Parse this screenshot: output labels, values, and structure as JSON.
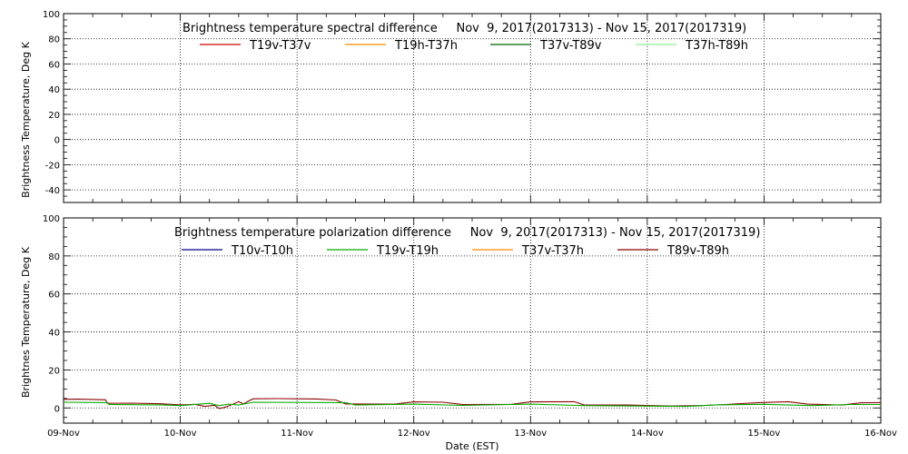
{
  "chart_data": [
    {
      "type": "line",
      "title": "Brightness temperature spectral difference     Nov  9, 2017(2017313) - Nov 15, 2017(2017319)",
      "ylabel": "Brightness Temperature, Deg K",
      "ylim": [
        -50,
        100
      ],
      "yticks": [
        -40,
        -20,
        0,
        20,
        40,
        60,
        80,
        100
      ],
      "xlim": [
        "2017-11-09",
        "2017-11-16"
      ],
      "grid": true,
      "legend_position": "top",
      "series": [
        {
          "name": "T19v-T37v",
          "color": "#cc0000",
          "points": []
        },
        {
          "name": "T19h-T37h",
          "color": "#ff8c00",
          "points": []
        },
        {
          "name": "T37v-T89v",
          "color": "#006400",
          "points": []
        },
        {
          "name": "T37h-T89h",
          "color": "#90ee90",
          "points": []
        }
      ]
    },
    {
      "type": "line",
      "title": "Brightness temperature polarization difference     Nov  9, 2017(2017313) - Nov 15, 2017(2017319)",
      "ylabel": "Brightnes Temperature, Deg K",
      "xlabel": "Date (EST)",
      "ylim": [
        -8,
        100
      ],
      "yticks": [
        0,
        20,
        40,
        60,
        80,
        100
      ],
      "xlim": [
        "2017-11-09",
        "2017-11-16"
      ],
      "grid": true,
      "legend_position": "top",
      "series": [
        {
          "name": "T10v-T10h",
          "color": "#00008b",
          "points": []
        },
        {
          "name": "T19v-T19h",
          "color": "#00aa00",
          "points": []
        },
        {
          "name": "T37v-T37h",
          "color": "#ff8c00",
          "points": []
        },
        {
          "name": "T89v-T89h",
          "color": "#8b0000",
          "points": [
            [
              "2017-11-09 00:00",
              4.5
            ],
            [
              "2017-11-09 03:00",
              4.6
            ],
            [
              "2017-11-09 07:00",
              4.4
            ],
            [
              "2017-11-09 08:40",
              4.3
            ],
            [
              "2017-11-09 09:00",
              2.4
            ],
            [
              "2017-11-09 14:00",
              2.5
            ],
            [
              "2017-11-09 20:00",
              2.2
            ],
            [
              "2017-11-10 00:00",
              1.6
            ],
            [
              "2017-11-10 03:00",
              1.9
            ],
            [
              "2017-11-10 05:00",
              0.8
            ],
            [
              "2017-11-10 07:00",
              1.4
            ],
            [
              "2017-11-10 08:00",
              -0.3
            ],
            [
              "2017-11-10 09:00",
              0.2
            ],
            [
              "2017-11-10 10:00",
              1.1
            ],
            [
              "2017-11-10 11:00",
              2.2
            ],
            [
              "2017-11-10 12:00",
              3.3
            ],
            [
              "2017-11-10 13:00",
              2.1
            ],
            [
              "2017-11-10 14:00",
              3.6
            ],
            [
              "2017-11-10 15:00",
              4.8
            ],
            [
              "2017-11-10 20:00",
              4.9
            ],
            [
              "2017-11-11 04:00",
              4.7
            ],
            [
              "2017-11-11 08:00",
              4.2
            ],
            [
              "2017-11-11 10:00",
              2.1
            ],
            [
              "2017-11-11 20:00",
              2.0
            ],
            [
              "2017-11-12 00:00",
              3.2
            ],
            [
              "2017-11-12 06:00",
              3.0
            ],
            [
              "2017-11-12 10:00",
              1.8
            ],
            [
              "2017-11-12 20:00",
              1.9
            ],
            [
              "2017-11-13 00:00",
              3.2
            ],
            [
              "2017-11-13 09:00",
              3.3
            ],
            [
              "2017-11-13 11:00",
              1.6
            ],
            [
              "2017-11-13 20:00",
              1.5
            ],
            [
              "2017-11-14 05:00",
              1.0
            ],
            [
              "2017-11-14 12:00",
              1.3
            ],
            [
              "2017-11-14 16:00",
              1.8
            ],
            [
              "2017-11-14 23:00",
              2.8
            ],
            [
              "2017-11-15 05:00",
              3.3
            ],
            [
              "2017-11-15 09:00",
              2.0
            ],
            [
              "2017-11-15 16:00",
              1.5
            ],
            [
              "2017-11-15 20:00",
              2.7
            ],
            [
              "2017-11-16 00:00",
              2.8
            ]
          ]
        },
        {
          "name": "T19v-T19h",
          "color": "#00aa00",
          "points": [
            [
              "2017-11-09 00:00",
              3.0
            ],
            [
              "2017-11-09 09:00",
              2.8
            ],
            [
              "2017-11-09 09:20",
              1.8
            ],
            [
              "2017-11-09 20:00",
              1.6
            ],
            [
              "2017-11-10 00:00",
              1.2
            ],
            [
              "2017-11-10 06:00",
              2.4
            ],
            [
              "2017-11-10 08:00",
              1.2
            ],
            [
              "2017-11-10 10:00",
              2.0
            ],
            [
              "2017-11-10 12:00",
              1.5
            ],
            [
              "2017-11-10 15:00",
              3.0
            ],
            [
              "2017-11-11 10:00",
              2.8
            ],
            [
              "2017-11-11 12:00",
              1.5
            ],
            [
              "2017-11-12 00:00",
              2.0
            ],
            [
              "2017-11-12 10:00",
              1.3
            ],
            [
              "2017-11-13 00:00",
              2.0
            ],
            [
              "2017-11-13 11:00",
              1.2
            ],
            [
              "2017-11-14 08:00",
              0.8
            ],
            [
              "2017-11-14 14:00",
              1.6
            ],
            [
              "2017-11-15 00:00",
              1.9
            ],
            [
              "2017-11-15 10:00",
              1.2
            ],
            [
              "2017-11-15 18:00",
              1.8
            ],
            [
              "2017-11-16 00:00",
              1.8
            ]
          ]
        }
      ]
    }
  ],
  "x_tick_labels": [
    "09-Nov",
    "10-Nov",
    "11-Nov",
    "12-Nov",
    "13-Nov",
    "14-Nov",
    "15-Nov",
    "16-Nov"
  ]
}
